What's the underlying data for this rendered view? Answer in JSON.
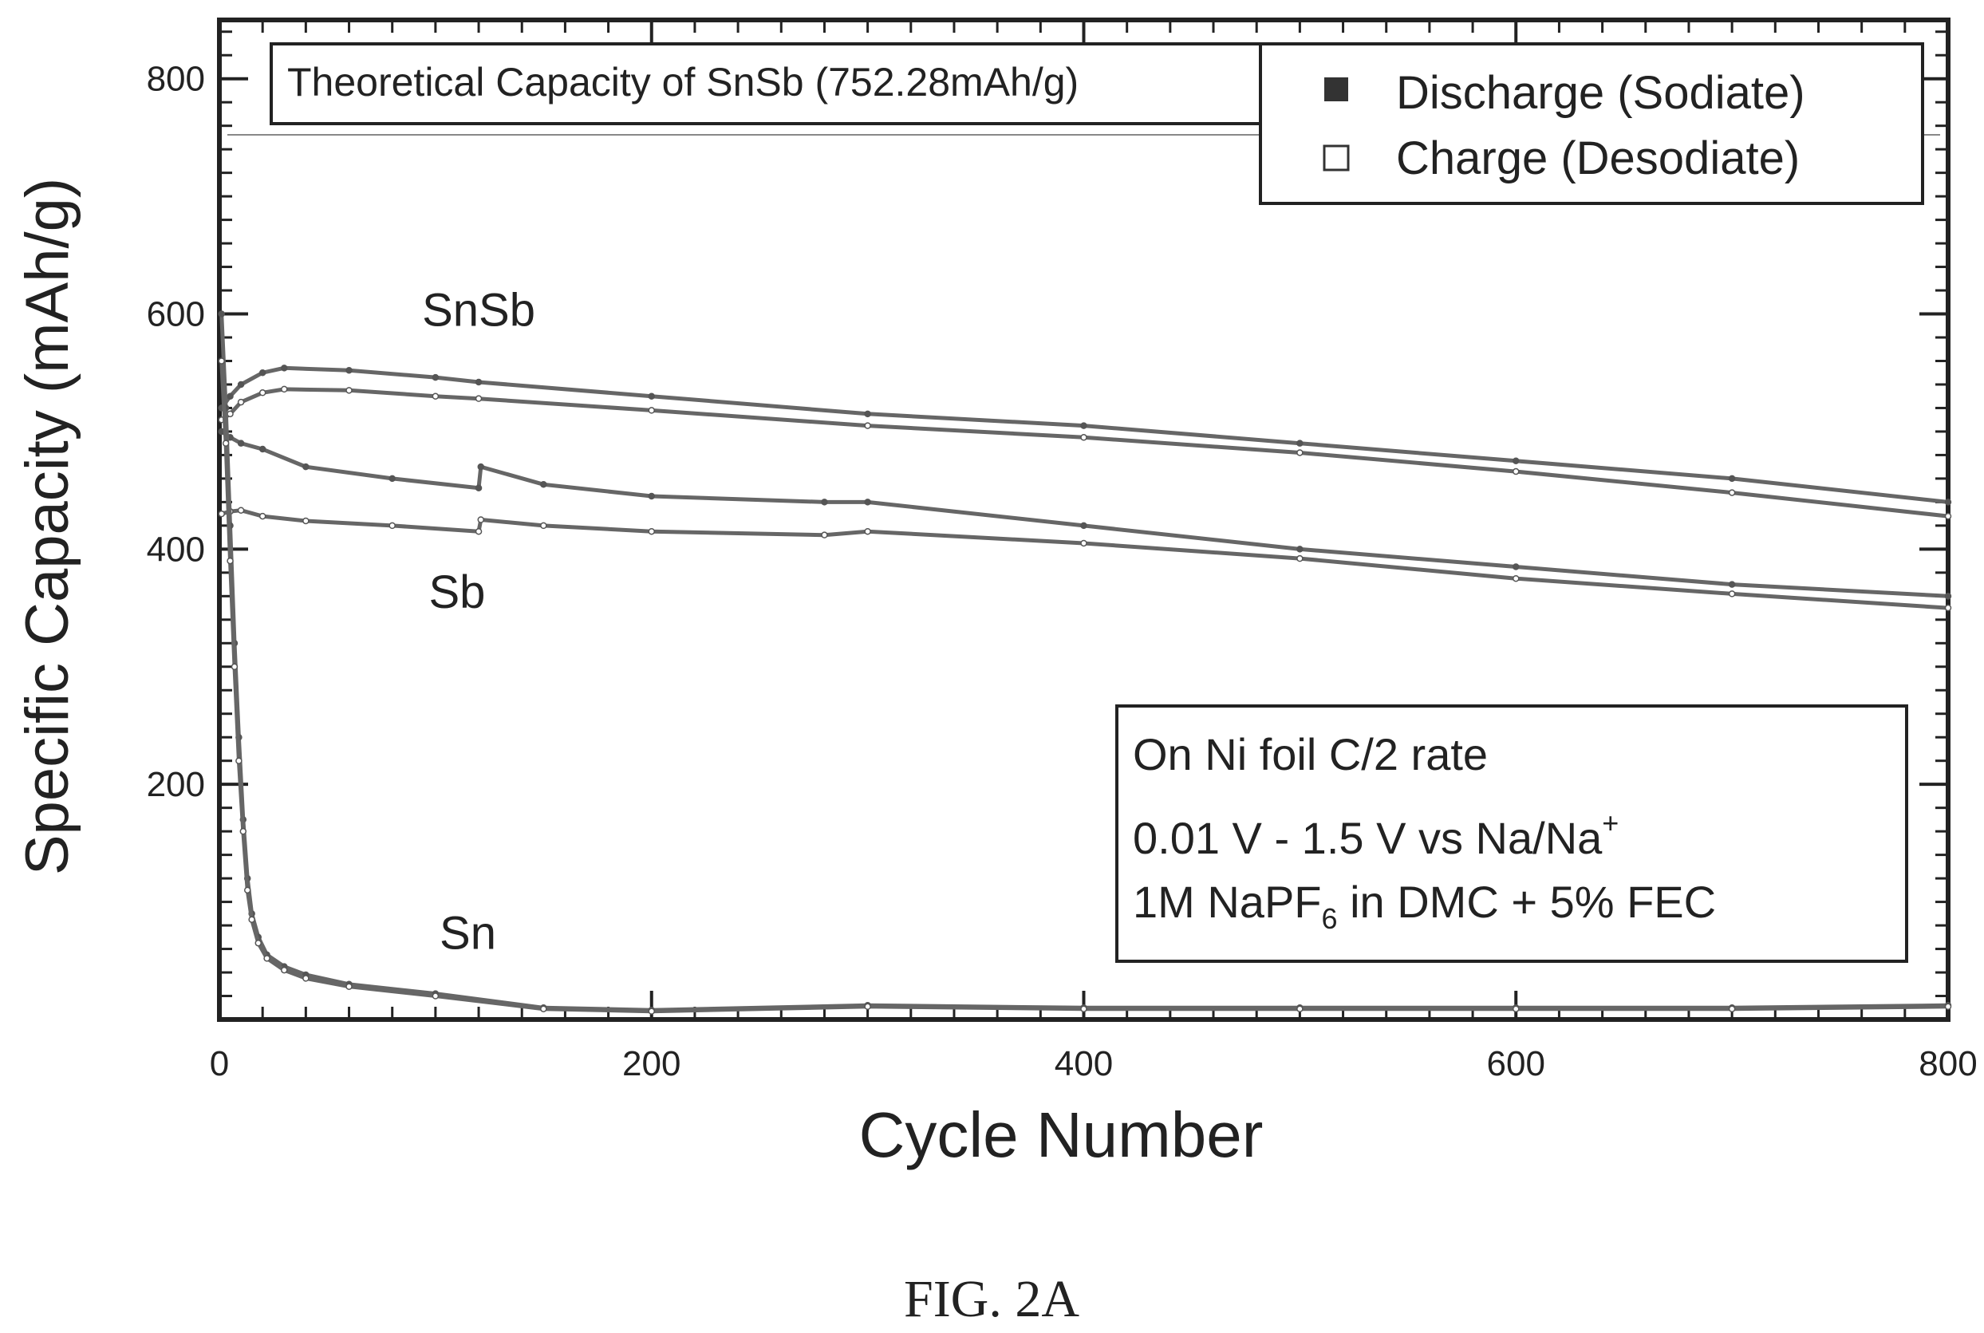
{
  "figure": {
    "caption": "FIG. 2A"
  },
  "chart_data": {
    "type": "line",
    "xlabel": "Cycle Number",
    "ylabel": "Specific Capacity (mAh/g)",
    "xlim": [
      0,
      800
    ],
    "ylim": [
      0,
      850
    ],
    "x_ticks": [
      0,
      200,
      400,
      600,
      800
    ],
    "y_ticks": [
      200,
      400,
      600,
      800
    ],
    "grid": false,
    "legend": {
      "position": "top-right",
      "entries": [
        {
          "label": "Discharge (Sodiate)",
          "marker": "filled-square"
        },
        {
          "label": "Charge (Desodiate)",
          "marker": "open-square"
        }
      ]
    },
    "reference_line": {
      "y": 752.28,
      "label": "Theoretical Capacity of SnSb (752.28mAh/g)"
    },
    "curve_labels": [
      {
        "text": "SnSb",
        "x": 120,
        "y": 590
      },
      {
        "text": "Sb",
        "x": 110,
        "y": 350
      },
      {
        "text": "Sn",
        "x": 115,
        "y": 60
      }
    ],
    "annotation_box": {
      "line1": "On Ni foil C/2 rate",
      "line2_main": "0.01 V - 1.5 V vs Na/Na",
      "line2_sup": "+",
      "line3_pre": "1M NaPF",
      "line3_sub": "6",
      "line3_post": " in DMC + 5% FEC"
    },
    "series": [
      {
        "group": "SnSb",
        "kind": "discharge",
        "x": [
          1,
          5,
          10,
          20,
          30,
          60,
          100,
          120,
          200,
          300,
          400,
          500,
          600,
          700,
          800
        ],
        "y": [
          520,
          530,
          540,
          550,
          554,
          552,
          546,
          542,
          530,
          515,
          505,
          490,
          475,
          460,
          440
        ]
      },
      {
        "group": "SnSb",
        "kind": "charge",
        "x": [
          1,
          5,
          10,
          20,
          30,
          60,
          100,
          120,
          200,
          300,
          400,
          500,
          600,
          700,
          800
        ],
        "y": [
          510,
          515,
          525,
          533,
          536,
          535,
          530,
          528,
          518,
          505,
          495,
          482,
          466,
          448,
          428
        ]
      },
      {
        "group": "Sb",
        "kind": "discharge",
        "x": [
          1,
          5,
          10,
          20,
          40,
          80,
          120,
          121,
          150,
          200,
          280,
          300,
          400,
          500,
          600,
          700,
          800
        ],
        "y": [
          500,
          495,
          490,
          485,
          470,
          460,
          452,
          470,
          455,
          445,
          440,
          440,
          420,
          400,
          385,
          370,
          360
        ]
      },
      {
        "group": "Sb",
        "kind": "charge",
        "x": [
          1,
          5,
          10,
          20,
          40,
          80,
          120,
          121,
          150,
          200,
          280,
          300,
          400,
          500,
          600,
          700,
          800
        ],
        "y": [
          430,
          432,
          433,
          428,
          424,
          420,
          415,
          425,
          420,
          415,
          412,
          415,
          405,
          392,
          375,
          362,
          350
        ]
      },
      {
        "group": "Sn",
        "kind": "discharge",
        "x": [
          1,
          3,
          5,
          7,
          9,
          11,
          13,
          15,
          18,
          22,
          30,
          40,
          60,
          100,
          150,
          200,
          300,
          400,
          500,
          600,
          700,
          800
        ],
        "y": [
          600,
          520,
          420,
          320,
          240,
          170,
          120,
          90,
          70,
          55,
          45,
          38,
          30,
          22,
          10,
          8,
          12,
          10,
          10,
          10,
          10,
          12
        ]
      },
      {
        "group": "Sn",
        "kind": "charge",
        "x": [
          1,
          3,
          5,
          7,
          9,
          11,
          13,
          15,
          18,
          22,
          30,
          40,
          60,
          100,
          150,
          200,
          300,
          400,
          500,
          600,
          700,
          800
        ],
        "y": [
          560,
          490,
          390,
          300,
          220,
          160,
          110,
          85,
          65,
          52,
          42,
          35,
          28,
          20,
          9,
          7,
          11,
          9,
          9,
          9,
          9,
          11
        ]
      }
    ]
  }
}
